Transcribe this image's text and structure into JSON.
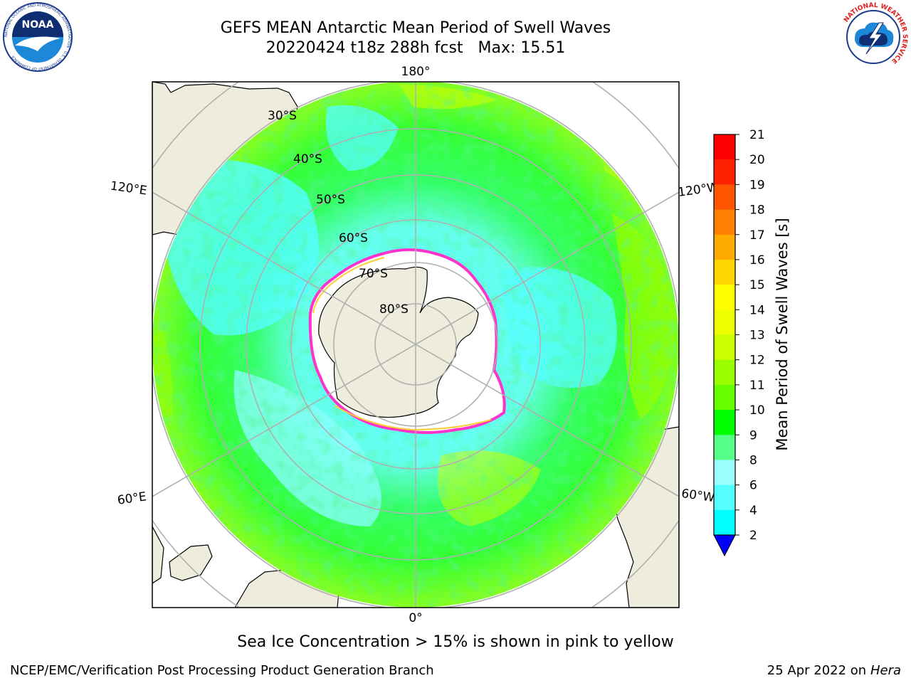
{
  "header": {
    "title_line1": "GEFS MEAN Antarctic Mean Period of Swell Waves",
    "title_line2": "20220424 t18z 288h fcst   Max: 15.51"
  },
  "logos": {
    "left": {
      "name": "noaa-logo",
      "text": "NOAA",
      "ring_text": "NATIONAL OCEANIC AND ATMOSPHERIC ADMINISTRATION · U.S. DEPARTMENT OF COMMERCE"
    },
    "right": {
      "name": "nws-logo",
      "ring_text": "NATIONAL WEATHER SERVICE"
    }
  },
  "map": {
    "projection": "south-polar-stereographic",
    "longitude_labels": [
      {
        "id": "lon-180",
        "text": "180°"
      },
      {
        "id": "lon-120e",
        "text": "120°E"
      },
      {
        "id": "lon-120w",
        "text": "120°W"
      },
      {
        "id": "lon-60e",
        "text": "60°E"
      },
      {
        "id": "lon-60w",
        "text": "60°W"
      },
      {
        "id": "lon-0",
        "text": "0°"
      }
    ],
    "latitude_labels": [
      "30°S",
      "40°S",
      "50°S",
      "60°S",
      "70°S",
      "80°S"
    ]
  },
  "colorbar": {
    "label": "Mean Period of Swell Waves [s]",
    "ticks": [
      21,
      20,
      19,
      18,
      17,
      16,
      15,
      14,
      13,
      12,
      11,
      10,
      9,
      8,
      6,
      4,
      2
    ],
    "colors": [
      "#ff0000",
      "#ff2200",
      "#ff5500",
      "#ff8000",
      "#ffaa00",
      "#ffd500",
      "#ffff00",
      "#eeff00",
      "#ccff00",
      "#99ff00",
      "#66ff00",
      "#00ff00",
      "#55ff88",
      "#99ffff",
      "#55ffff",
      "#00ffff",
      "#00aaff",
      "#0055ff"
    ],
    "extend_color": "#0000ff"
  },
  "colors": {
    "land": "#eeecdc",
    "ice": "#ffffff",
    "ice_edge": "#ff33cc",
    "grid": "#b0b0b0"
  },
  "note": "Sea Ice Concentration > 15% is shown in pink to yellow",
  "footer": {
    "left": "NCEP/EMC/Verification Post Processing Product Generation Branch",
    "right_date": "25 Apr 2022 on ",
    "right_host": "Hera"
  }
}
